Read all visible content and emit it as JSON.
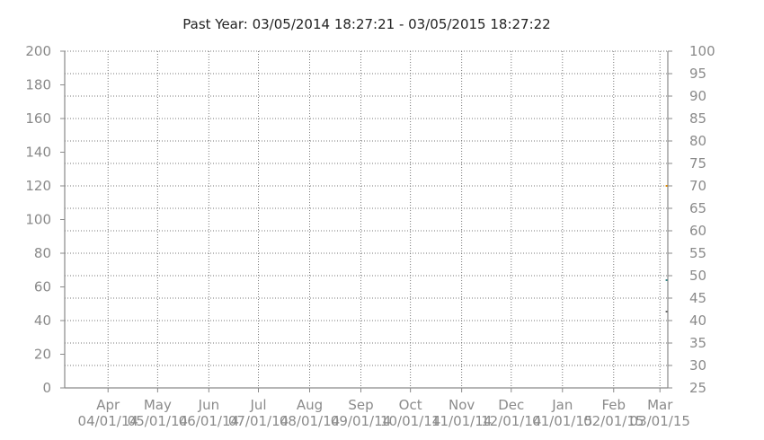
{
  "chart_data": {
    "type": "line",
    "title": "Past Year: 03/05/2014 18:27:21 - 03/05/2015 18:27:22",
    "x_ticks": [
      {
        "month": "Apr",
        "date": "04/01/14"
      },
      {
        "month": "May",
        "date": "05/01/14"
      },
      {
        "month": "Jun",
        "date": "06/01/14"
      },
      {
        "month": "Jul",
        "date": "07/01/14"
      },
      {
        "month": "Aug",
        "date": "08/01/14"
      },
      {
        "month": "Sep",
        "date": "09/01/14"
      },
      {
        "month": "Oct",
        "date": "10/01/14"
      },
      {
        "month": "Nov",
        "date": "11/01/14"
      },
      {
        "month": "Dec",
        "date": "12/01/14"
      },
      {
        "month": "Jan",
        "date": "01/01/15"
      },
      {
        "month": "Feb",
        "date": "02/01/15"
      },
      {
        "month": "Mar",
        "date": "03/01/15"
      }
    ],
    "xlim": [
      "03/05/2014 18:27:21",
      "03/05/2015 18:27:22"
    ],
    "y_left": {
      "ylim": [
        0,
        200
      ],
      "ticks": [
        0,
        20,
        40,
        60,
        80,
        100,
        120,
        140,
        160,
        180,
        200
      ]
    },
    "y_right": {
      "ylim": [
        25,
        100
      ],
      "ticks": [
        25,
        30,
        35,
        40,
        45,
        50,
        55,
        60,
        65,
        70,
        75,
        80,
        85,
        90,
        95,
        100
      ]
    },
    "grid": true,
    "series": [
      {
        "axis": "right",
        "color": "#e08a00",
        "points": [
          {
            "x": "03/05/2015",
            "y": 70
          }
        ]
      },
      {
        "axis": "right",
        "color": "#3a8a8a",
        "points": [
          {
            "x": "03/05/2015",
            "y": 49
          }
        ]
      },
      {
        "axis": "right",
        "color": "#6a6a6a",
        "points": [
          {
            "x": "03/05/2015",
            "y": 42
          }
        ]
      }
    ]
  }
}
